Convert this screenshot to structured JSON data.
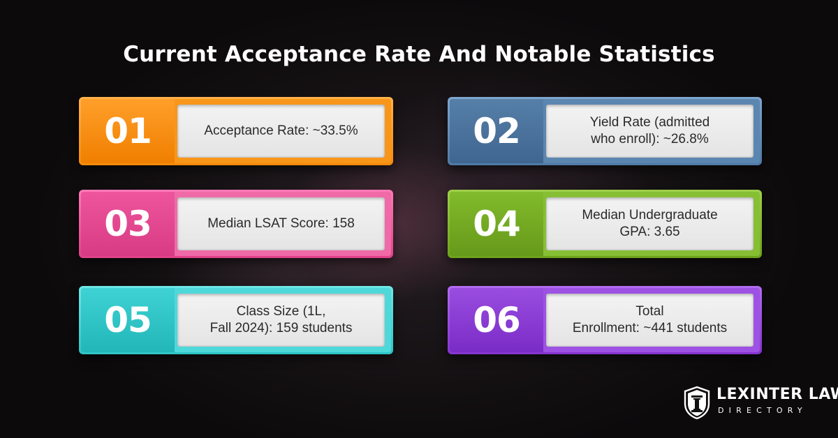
{
  "title": "Current Acceptance Rate And Notable Statistics",
  "cards": [
    {
      "number": "01",
      "line1": "Acceptance Rate: ~33.5%",
      "line2": "",
      "color": "#f8961a"
    },
    {
      "number": "02",
      "line1": "Yield Rate (admitted",
      "line2": "who enroll): ~26.8%",
      "color": "#4f7aa6"
    },
    {
      "number": "03",
      "line1": "Median LSAT Score: 158",
      "line2": "",
      "color": "#e0408a"
    },
    {
      "number": "04",
      "line1": "Median Undergraduate",
      "line2": "GPA: 3.65",
      "color": "#6ea21b"
    },
    {
      "number": "05",
      "line1": "Class Size (1L,",
      "line2": "Fall 2024): 159 students",
      "color": "#2ec4c6"
    },
    {
      "number": "06",
      "line1": "Total",
      "line2": "Enrollment: ~441 students",
      "color": "#8534d0"
    }
  ],
  "logo": {
    "name": "LEXINTER LAW",
    "subtitle": "DIRECTORY",
    "icon": "pillar-shield-icon"
  }
}
